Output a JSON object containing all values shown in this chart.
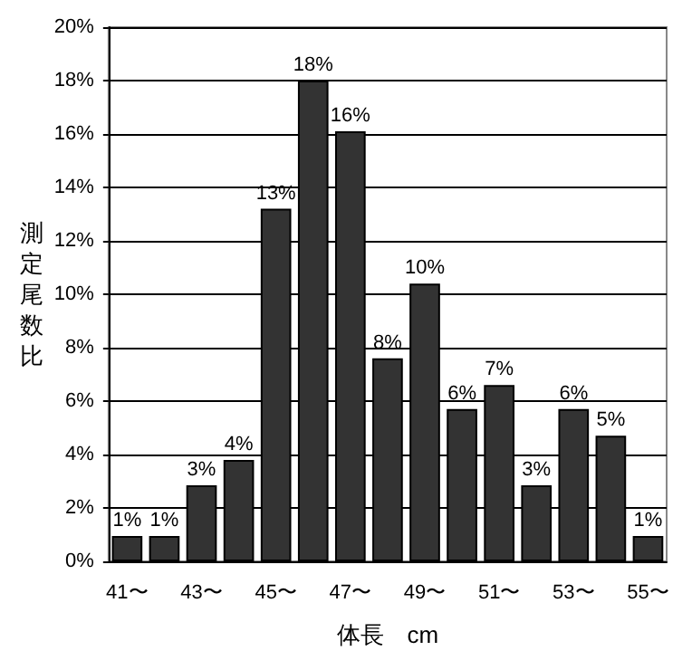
{
  "chart_data": {
    "type": "bar",
    "xlabel": "体長　cm",
    "ylabel": "測定尾数比",
    "categories": [
      "41〜",
      null,
      "43〜",
      null,
      "45〜",
      null,
      "47〜",
      null,
      "49〜",
      null,
      "51〜",
      null,
      "53〜",
      null,
      "55〜"
    ],
    "values": [
      0.95,
      0.95,
      2.85,
      3.8,
      13.2,
      18.0,
      16.1,
      7.6,
      10.4,
      5.7,
      6.6,
      2.85,
      5.7,
      4.7,
      0.95
    ],
    "value_labels": [
      "1%",
      "1%",
      "3%",
      "4%",
      "13%",
      "18%",
      "16%",
      "8%",
      "10%",
      "6%",
      "7%",
      "3%",
      "6%",
      "5%",
      "1%"
    ],
    "color": "#333333",
    "ylim": [
      0,
      20
    ],
    "yticks": [
      {
        "value": 0,
        "label": "0%"
      },
      {
        "value": 2,
        "label": "2%"
      },
      {
        "value": 4,
        "label": "4%"
      },
      {
        "value": 6,
        "label": "6%"
      },
      {
        "value": 8,
        "label": "8%"
      },
      {
        "value": 10,
        "label": "10%"
      },
      {
        "value": 12,
        "label": "12%"
      },
      {
        "value": 14,
        "label": "14%"
      },
      {
        "value": 16,
        "label": "16%"
      },
      {
        "value": 18,
        "label": "18%"
      },
      {
        "value": 20,
        "label": "20%"
      }
    ],
    "grid": "y"
  }
}
